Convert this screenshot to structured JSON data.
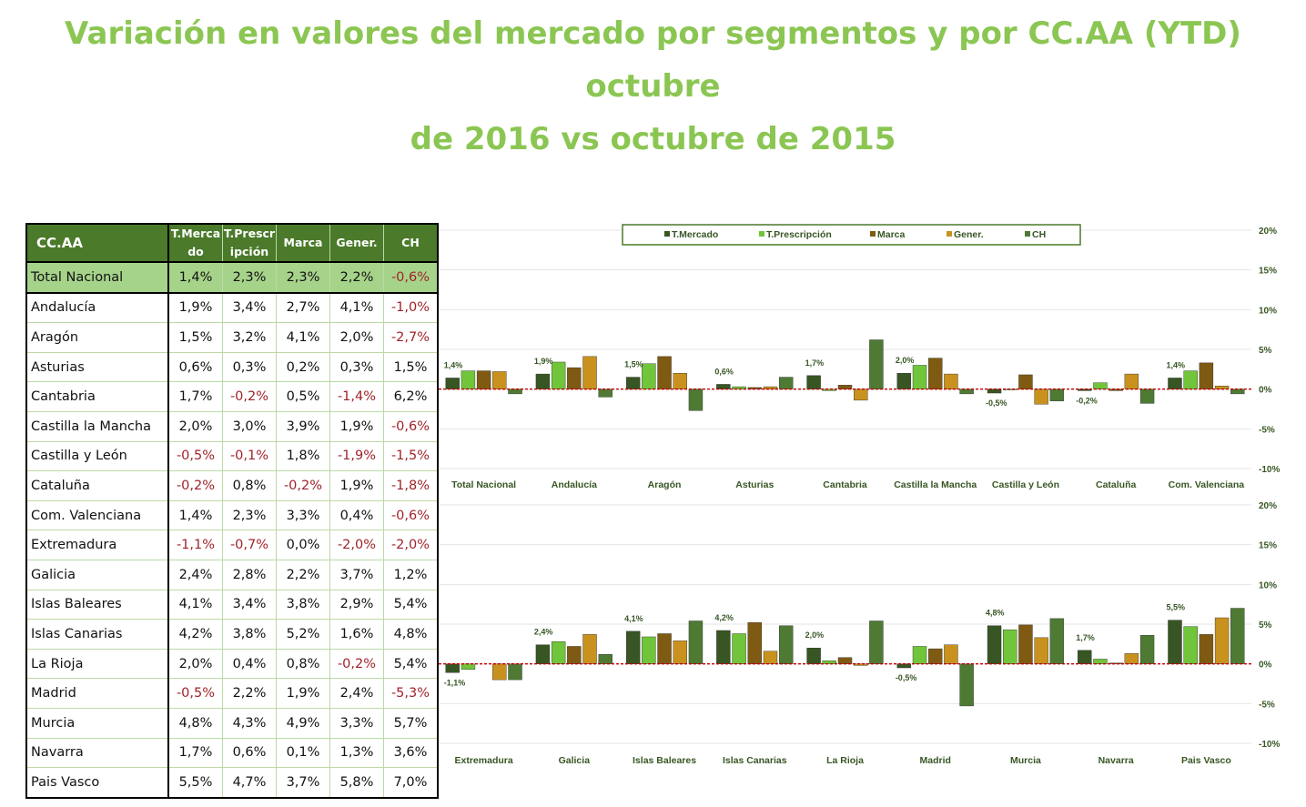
{
  "title_line1": "Variación en valores del mercado por segmentos y por CC.AA (YTD) octubre",
  "title_line2": "de 2016 vs octubre de 2015",
  "table": {
    "region_header": "CC.AA",
    "headers": [
      [
        "T.Merca",
        "do"
      ],
      [
        "T.Prescr",
        "ipción"
      ],
      [
        "Marca",
        ""
      ],
      [
        "Gener.",
        ""
      ],
      [
        "CH",
        ""
      ]
    ],
    "rows": [
      {
        "region": "Total Nacional",
        "values": [
          "1,4%",
          "2,3%",
          "2,3%",
          "2,2%",
          "-0,6%"
        ]
      },
      {
        "region": "Andalucía",
        "values": [
          "1,9%",
          "3,4%",
          "2,7%",
          "4,1%",
          "-1,0%"
        ]
      },
      {
        "region": "Aragón",
        "values": [
          "1,5%",
          "3,2%",
          "4,1%",
          "2,0%",
          "-2,7%"
        ]
      },
      {
        "region": "Asturias",
        "values": [
          "0,6%",
          "0,3%",
          "0,2%",
          "0,3%",
          "1,5%"
        ]
      },
      {
        "region": "Cantabria",
        "values": [
          "1,7%",
          "-0,2%",
          "0,5%",
          "-1,4%",
          "6,2%"
        ]
      },
      {
        "region": "Castilla la Mancha",
        "values": [
          "2,0%",
          "3,0%",
          "3,9%",
          "1,9%",
          "-0,6%"
        ]
      },
      {
        "region": "Castilla y León",
        "values": [
          "-0,5%",
          "-0,1%",
          "1,8%",
          "-1,9%",
          "-1,5%"
        ]
      },
      {
        "region": "Cataluña",
        "values": [
          "-0,2%",
          "0,8%",
          "-0,2%",
          "1,9%",
          "-1,8%"
        ]
      },
      {
        "region": "Com. Valenciana",
        "values": [
          "1,4%",
          "2,3%",
          "3,3%",
          "0,4%",
          "-0,6%"
        ]
      },
      {
        "region": "Extremadura",
        "values": [
          "-1,1%",
          "-0,7%",
          "0,0%",
          "-2,0%",
          "-2,0%"
        ]
      },
      {
        "region": "Galicia",
        "values": [
          "2,4%",
          "2,8%",
          "2,2%",
          "3,7%",
          "1,2%"
        ]
      },
      {
        "region": "Islas Baleares",
        "values": [
          "4,1%",
          "3,4%",
          "3,8%",
          "2,9%",
          "5,4%"
        ]
      },
      {
        "region": "Islas Canarias",
        "values": [
          "4,2%",
          "3,8%",
          "5,2%",
          "1,6%",
          "4,8%"
        ]
      },
      {
        "region": "La Rioja",
        "values": [
          "2,0%",
          "0,4%",
          "0,8%",
          "-0,2%",
          "5,4%"
        ]
      },
      {
        "region": "Madrid",
        "values": [
          "-0,5%",
          "2,2%",
          "1,9%",
          "2,4%",
          "-5,3%"
        ]
      },
      {
        "region": "Murcia",
        "values": [
          "4,8%",
          "4,3%",
          "4,9%",
          "3,3%",
          "5,7%"
        ]
      },
      {
        "region": "Navarra",
        "values": [
          "1,7%",
          "0,6%",
          "0,1%",
          "1,3%",
          "3,6%"
        ]
      },
      {
        "region": "Pais Vasco",
        "values": [
          "5,5%",
          "4,7%",
          "3,7%",
          "5,8%",
          "7,0%"
        ]
      }
    ]
  },
  "colors": {
    "title": "#8bc653",
    "T.Mercado": "#375623",
    "T.Prescripción": "#70c53a",
    "Marca": "#7f5a12",
    "Gener.": "#c9921e",
    "CH": "#4e7a34",
    "negative_text": "#a0232a",
    "zero_line": "#c00000"
  },
  "chart_data": [
    {
      "type": "bar",
      "categories": [
        "Total Nacional",
        "Andalucía",
        "Aragón",
        "Asturias",
        "Cantabria",
        "Castilla la Mancha",
        "Castilla y León",
        "Cataluña",
        "Com. Valenciana"
      ],
      "series": [
        {
          "name": "T.Mercado",
          "values": [
            1.4,
            1.9,
            1.5,
            0.6,
            1.7,
            2.0,
            -0.5,
            -0.2,
            1.4
          ]
        },
        {
          "name": "T.Prescripción",
          "values": [
            2.3,
            3.4,
            3.2,
            0.3,
            -0.2,
            3.0,
            -0.1,
            0.8,
            2.3
          ]
        },
        {
          "name": "Marca",
          "values": [
            2.3,
            2.7,
            4.1,
            0.2,
            0.5,
            3.9,
            1.8,
            -0.2,
            3.3
          ]
        },
        {
          "name": "Gener.",
          "values": [
            2.2,
            4.1,
            2.0,
            0.3,
            -1.4,
            1.9,
            -1.9,
            1.9,
            0.4
          ]
        },
        {
          "name": "CH",
          "values": [
            -0.6,
            -1.0,
            -2.7,
            1.5,
            6.2,
            -0.6,
            -1.5,
            -1.8,
            -0.6
          ]
        }
      ],
      "data_labels": [
        "1,4%",
        "1,9%",
        "1,5%",
        "0,6%",
        "1,7%",
        "2,0%",
        "-0,5%",
        "-0,2%",
        "1,4%"
      ],
      "y_ticks": [
        "20%",
        "15%",
        "10%",
        "5%",
        "0%",
        "-5%",
        "-10%"
      ],
      "ylim": [
        -10,
        20
      ],
      "legend": "top",
      "grid": true
    },
    {
      "type": "bar",
      "categories": [
        "Extremadura",
        "Galicia",
        "Islas Baleares",
        "Islas Canarias",
        "La Rioja",
        "Madrid",
        "Murcia",
        "Navarra",
        "Pais Vasco"
      ],
      "series": [
        {
          "name": "T.Mercado",
          "values": [
            -1.1,
            2.4,
            4.1,
            4.2,
            2.0,
            -0.5,
            4.8,
            1.7,
            5.5
          ]
        },
        {
          "name": "T.Prescripción",
          "values": [
            -0.7,
            2.8,
            3.4,
            3.8,
            0.4,
            2.2,
            4.3,
            0.6,
            4.7
          ]
        },
        {
          "name": "Marca",
          "values": [
            0.0,
            2.2,
            3.8,
            5.2,
            0.8,
            1.9,
            4.9,
            0.1,
            3.7
          ]
        },
        {
          "name": "Gener.",
          "values": [
            -2.0,
            3.7,
            2.9,
            1.6,
            -0.2,
            2.4,
            3.3,
            1.3,
            5.8
          ]
        },
        {
          "name": "CH",
          "values": [
            -2.0,
            1.2,
            5.4,
            4.8,
            5.4,
            -5.3,
            5.7,
            3.6,
            7.0
          ]
        }
      ],
      "data_labels": [
        "-1,1%",
        "2,4%",
        "4,1%",
        "4,2%",
        "2,0%",
        "-0,5%",
        "4,8%",
        "1,7%",
        "5,5%"
      ],
      "y_ticks": [
        "20%",
        "15%",
        "10%",
        "5%",
        "0%",
        "-5%",
        "-10%"
      ],
      "ylim": [
        -10,
        20
      ],
      "grid": true
    }
  ]
}
